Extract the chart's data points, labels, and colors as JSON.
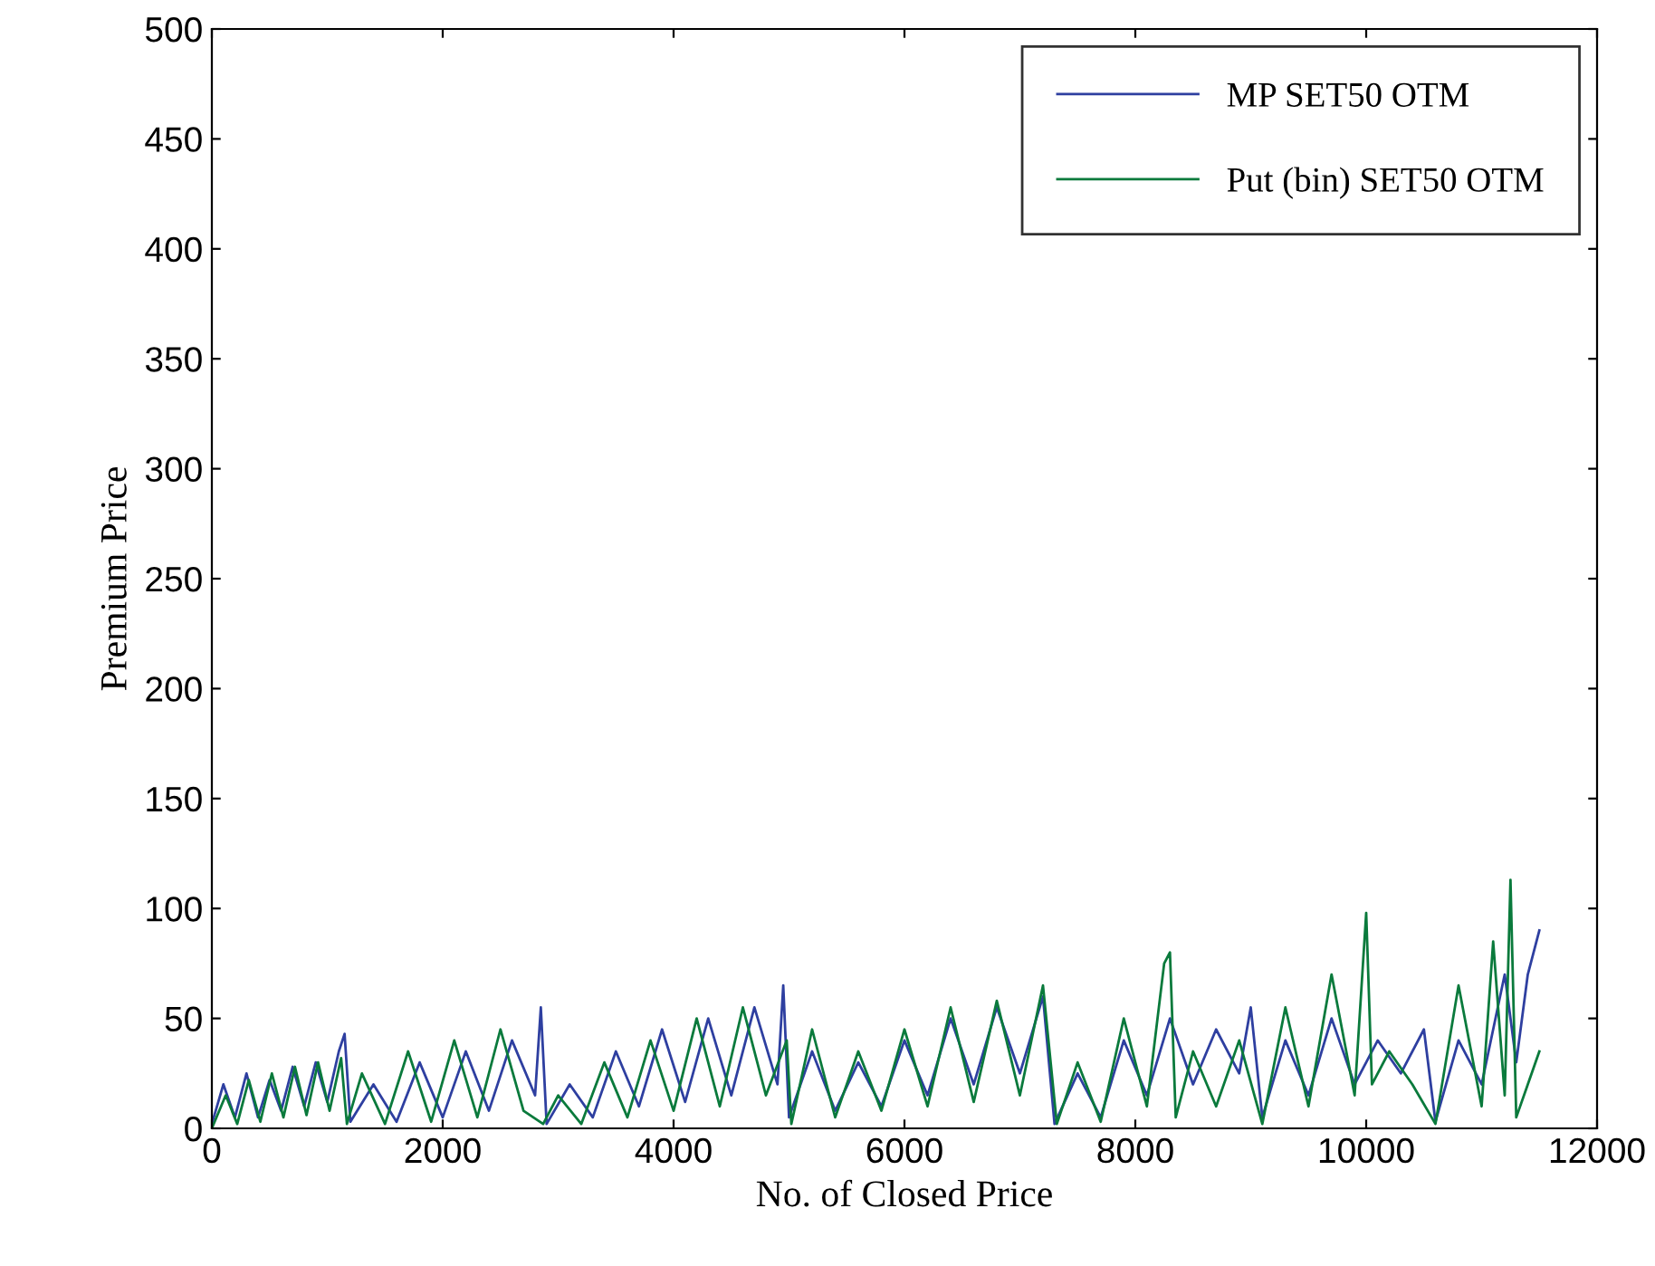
{
  "chart_data": {
    "type": "line",
    "xlabel": "No. of Closed Price",
    "ylabel": "Premium Price",
    "xlim": [
      0,
      12000
    ],
    "xticks": [
      0,
      2000,
      4000,
      6000,
      8000,
      10000,
      12000
    ],
    "ylim": [
      0,
      500
    ],
    "yticks": [
      0,
      50,
      100,
      150,
      200,
      250,
      300,
      350,
      400,
      450,
      500
    ],
    "legend": "top right",
    "grid": false,
    "line_style": "solid",
    "series": [
      {
        "name": "MP SET50 OTM",
        "color": "#2e3fa0",
        "x": [
          0,
          100,
          200,
          300,
          400,
          500,
          600,
          700,
          800,
          900,
          1000,
          1100,
          1150,
          1200,
          1400,
          1600,
          1800,
          2000,
          2200,
          2400,
          2600,
          2800,
          2850,
          2900,
          3100,
          3300,
          3500,
          3700,
          3900,
          4100,
          4300,
          4500,
          4700,
          4900,
          4950,
          5000,
          5200,
          5400,
          5600,
          5800,
          6000,
          6200,
          6400,
          6600,
          6800,
          7000,
          7200,
          7300,
          7500,
          7700,
          7900,
          8100,
          8300,
          8500,
          8700,
          8900,
          9000,
          9100,
          9300,
          9500,
          9700,
          9900,
          10100,
          10300,
          10500,
          10600,
          10800,
          11000,
          11200,
          11300,
          11400,
          11500
        ],
        "values": [
          2,
          20,
          5,
          25,
          5,
          22,
          8,
          28,
          10,
          30,
          12,
          35,
          43,
          3,
          20,
          3,
          30,
          5,
          35,
          8,
          40,
          15,
          55,
          2,
          20,
          5,
          35,
          10,
          45,
          12,
          50,
          15,
          55,
          20,
          65,
          5,
          35,
          8,
          30,
          10,
          40,
          15,
          50,
          20,
          55,
          25,
          60,
          2,
          25,
          5,
          40,
          15,
          50,
          20,
          45,
          25,
          55,
          5,
          40,
          15,
          50,
          20,
          40,
          25,
          45,
          3,
          40,
          20,
          70,
          30,
          70,
          90
        ]
      },
      {
        "name": "Put (bin) SET50 OTM",
        "color": "#0a7a3c",
        "x": [
          0,
          120,
          220,
          320,
          420,
          520,
          620,
          720,
          820,
          920,
          1020,
          1120,
          1170,
          1300,
          1500,
          1700,
          1900,
          2100,
          2300,
          2500,
          2700,
          2870,
          3000,
          3200,
          3400,
          3600,
          3800,
          4000,
          4200,
          4400,
          4600,
          4800,
          4980,
          5020,
          5200,
          5400,
          5600,
          5800,
          6000,
          6200,
          6400,
          6600,
          6800,
          7000,
          7200,
          7320,
          7500,
          7700,
          7900,
          8100,
          8250,
          8300,
          8350,
          8500,
          8700,
          8900,
          9100,
          9300,
          9500,
          9700,
          9900,
          10000,
          10050,
          10200,
          10400,
          10600,
          10800,
          11000,
          11100,
          11200,
          11250,
          11300,
          11400,
          11500
        ],
        "values": [
          0,
          15,
          2,
          22,
          3,
          25,
          5,
          28,
          6,
          30,
          8,
          32,
          2,
          25,
          2,
          35,
          3,
          40,
          5,
          45,
          8,
          2,
          15,
          2,
          30,
          5,
          40,
          8,
          50,
          10,
          55,
          15,
          40,
          2,
          45,
          5,
          35,
          8,
          45,
          10,
          55,
          12,
          58,
          15,
          65,
          2,
          30,
          3,
          50,
          10,
          75,
          80,
          5,
          35,
          10,
          40,
          2,
          55,
          10,
          70,
          15,
          98,
          20,
          35,
          20,
          2,
          65,
          10,
          85,
          15,
          113,
          5,
          20,
          35
        ]
      }
    ]
  }
}
